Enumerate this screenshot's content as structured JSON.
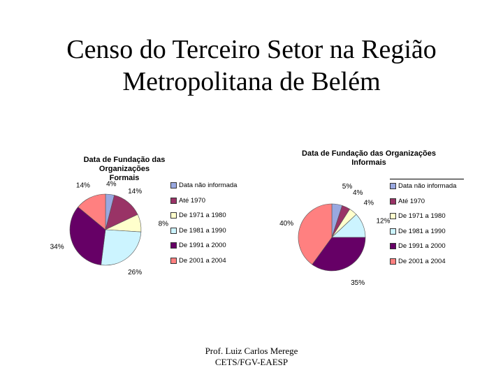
{
  "slide": {
    "title_line1": "Censo do Terceiro Setor na Região",
    "title_line2": "Metropolitana de Belém",
    "footer_line1": "Prof. Luiz Carlos Merege",
    "footer_line2": "CETS/FGV-EAESP"
  },
  "colors": [
    "#99a8e0",
    "#993366",
    "#ffffcc",
    "#ccf4ff",
    "#660066",
    "#ff8080"
  ],
  "chart_data": [
    {
      "type": "pie",
      "title_line1": "Data de Fundação  das Organizações",
      "title_line2": "Formais",
      "categories": [
        "Data não informada",
        "Até 1970",
        "De 1971 a 1980",
        "De 1981 a 1990",
        "De 1991 a 2000",
        "De 2001 a 2004"
      ],
      "values": [
        4,
        14,
        8,
        26,
        34,
        14
      ],
      "data_labels": [
        "4%",
        "14%",
        "8%",
        "26%",
        "34%",
        "14%"
      ],
      "legend": "right"
    },
    {
      "type": "pie",
      "title_line1": "Data de Fundação das Organizações",
      "title_line2": "Informais",
      "categories": [
        "Data não informada",
        "Até 1970",
        "De 1971 a 1980",
        "De 1981 a 1990",
        "De 1991 a 2000",
        "De 2001 a 2004"
      ],
      "values": [
        5,
        4,
        4,
        12,
        35,
        40
      ],
      "data_labels": [
        "5%",
        "4%",
        "4%",
        "12%",
        "35%",
        "40%"
      ],
      "legend": "right"
    }
  ]
}
